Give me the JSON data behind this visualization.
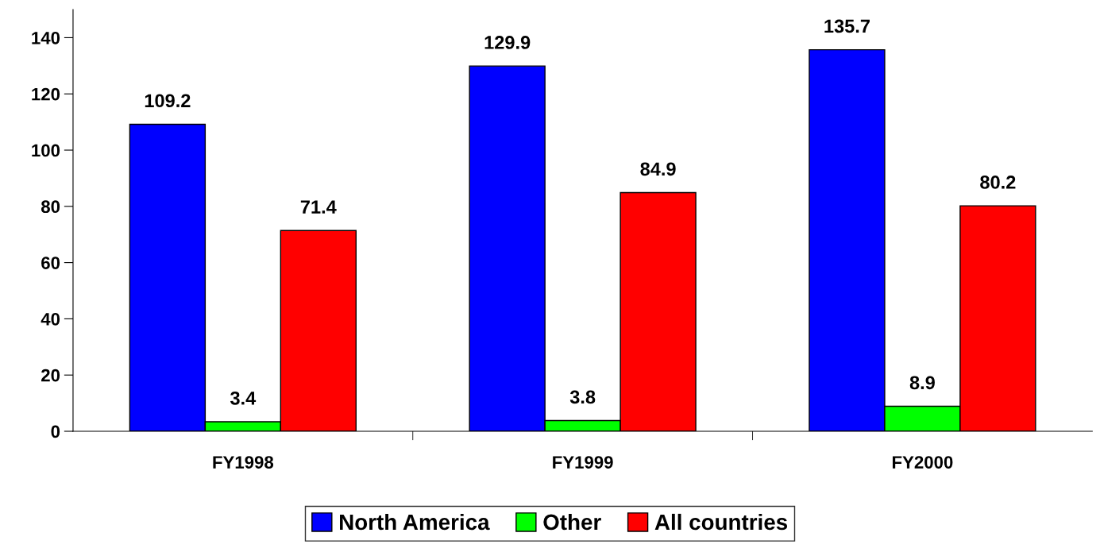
{
  "chart_data": {
    "type": "bar",
    "categories": [
      "FY1998",
      "FY1999",
      "FY2000"
    ],
    "series": [
      {
        "name": "North America",
        "color": "#0000ff",
        "values": [
          109.2,
          129.9,
          135.7
        ]
      },
      {
        "name": "Other",
        "color": "#00ff00",
        "values": [
          3.4,
          3.8,
          8.9
        ]
      },
      {
        "name": "All countries",
        "color": "#ff0000",
        "values": [
          71.4,
          84.9,
          80.2
        ]
      }
    ],
    "ylim": [
      0,
      150
    ],
    "yticks": [
      0,
      20,
      40,
      60,
      80,
      100,
      120,
      140
    ],
    "data_labels": true,
    "legend": "bottom",
    "grid": false
  }
}
